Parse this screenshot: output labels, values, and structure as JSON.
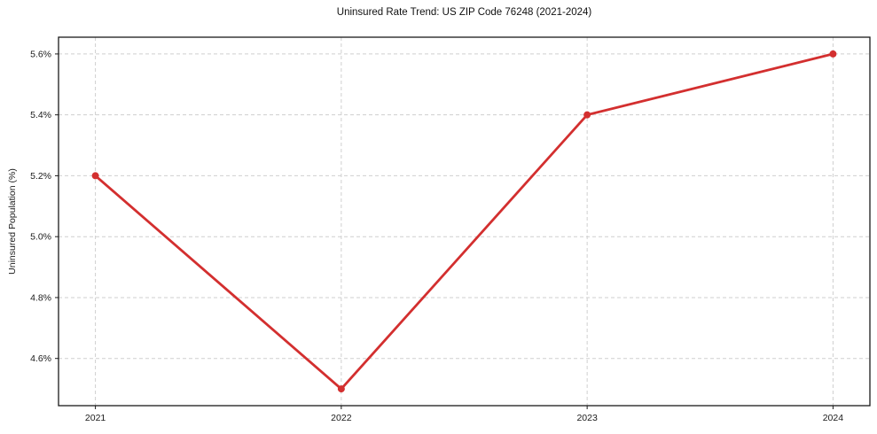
{
  "page": {
    "background": "#ffffff"
  },
  "chart_data": {
    "type": "line",
    "title": "Uninsured Rate Trend: US ZIP Code 76248 (2021-2024)",
    "xlabel": "",
    "ylabel": "Uninsured Population (%)",
    "x": [
      2021,
      2022,
      2023,
      2024
    ],
    "x_tick_labels": [
      "2021",
      "2022",
      "2023",
      "2024"
    ],
    "y_ticks": [
      4.6,
      4.8,
      5.0,
      5.2,
      5.4,
      5.6
    ],
    "y_tick_labels": [
      "4.6%",
      "4.8%",
      "5.0%",
      "5.2%",
      "5.4%",
      "5.6%"
    ],
    "series": [
      {
        "name": "Uninsured Population (%)",
        "values": [
          5.2,
          4.5,
          5.4,
          5.6
        ]
      }
    ],
    "xlim": [
      2020.85,
      2024.15
    ],
    "ylim": [
      4.445,
      5.655
    ],
    "grid": true,
    "grid_style": "dashed",
    "legend_position": "none",
    "marker": "circle",
    "colors": {
      "line": "#d32f2f",
      "marker": "#d32f2f",
      "grid": "#cfcfcf",
      "axis": "#1a1a1a",
      "text": "#1a1a1a"
    }
  }
}
